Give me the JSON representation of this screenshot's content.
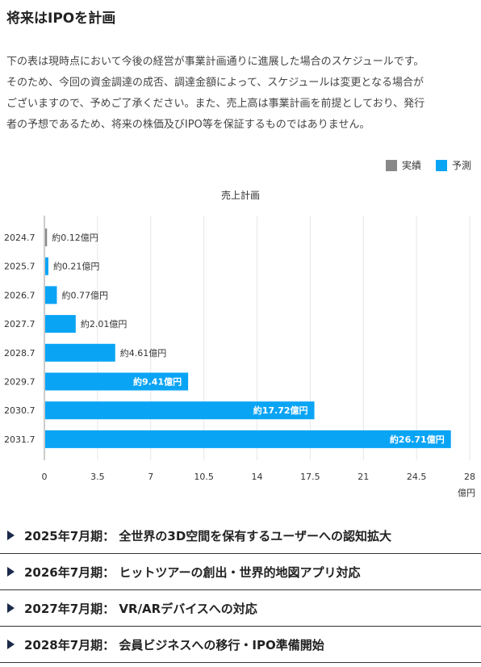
{
  "header": {
    "title": "将来はIPOを計画"
  },
  "description": {
    "lines": [
      "下の表は現時点において今後の経営が事業計画通りに進展した場合のスケジュールです。",
      "そのため、今回の資金調達の成否、調達金額によって、スケジュールは変更となる場合が",
      "ございますので、予めご了承ください。また、売上高は事業計画を前提としており、発行",
      "者の予想であるため、将来の株価及びIPO等を保証するものではありません。"
    ]
  },
  "legend": {
    "actual_label": "実績",
    "forecast_label": "予測",
    "actual_color": "#888888",
    "forecast_color": "#0aa4f5"
  },
  "chart_data": {
    "type": "bar",
    "orientation": "horizontal",
    "title": "売上計画",
    "unit_label": "億円",
    "categories": [
      "2024.7",
      "2025.7",
      "2026.7",
      "2027.7",
      "2028.7",
      "2029.7",
      "2030.7",
      "2031.7"
    ],
    "values": [
      0.12,
      0.21,
      0.77,
      2.01,
      4.61,
      9.41,
      17.72,
      26.71
    ],
    "value_labels": [
      "約0.12億円",
      "約0.21億円",
      "約0.77億円",
      "約2.01億円",
      "約4.61億円",
      "約9.41億円",
      "約17.72億円",
      "約26.71億円"
    ],
    "kinds": [
      "actual",
      "forecast",
      "forecast",
      "forecast",
      "forecast",
      "forecast",
      "forecast",
      "forecast"
    ],
    "xlim": [
      0,
      28
    ],
    "xticks": [
      "0",
      "3.5",
      "7",
      "10.5",
      "14",
      "17.5",
      "21",
      "24.5",
      "28"
    ],
    "xtick_values": [
      0,
      3.5,
      7,
      10.5,
      14,
      17.5,
      21,
      24.5,
      28
    ],
    "grid": true,
    "legend_position": "top-right"
  },
  "milestones": [
    {
      "label": "2025年7月期： 全世界の3D空間を保有するユーザーへの認知拡大"
    },
    {
      "label": "2026年7月期： ヒットツアーの創出・世界的地図アプリ対応"
    },
    {
      "label": "2027年7月期： VR/ARデバイスへの対応"
    },
    {
      "label": "2028年7月期： 会員ビジネスへの移行・IPO準備開始"
    }
  ]
}
